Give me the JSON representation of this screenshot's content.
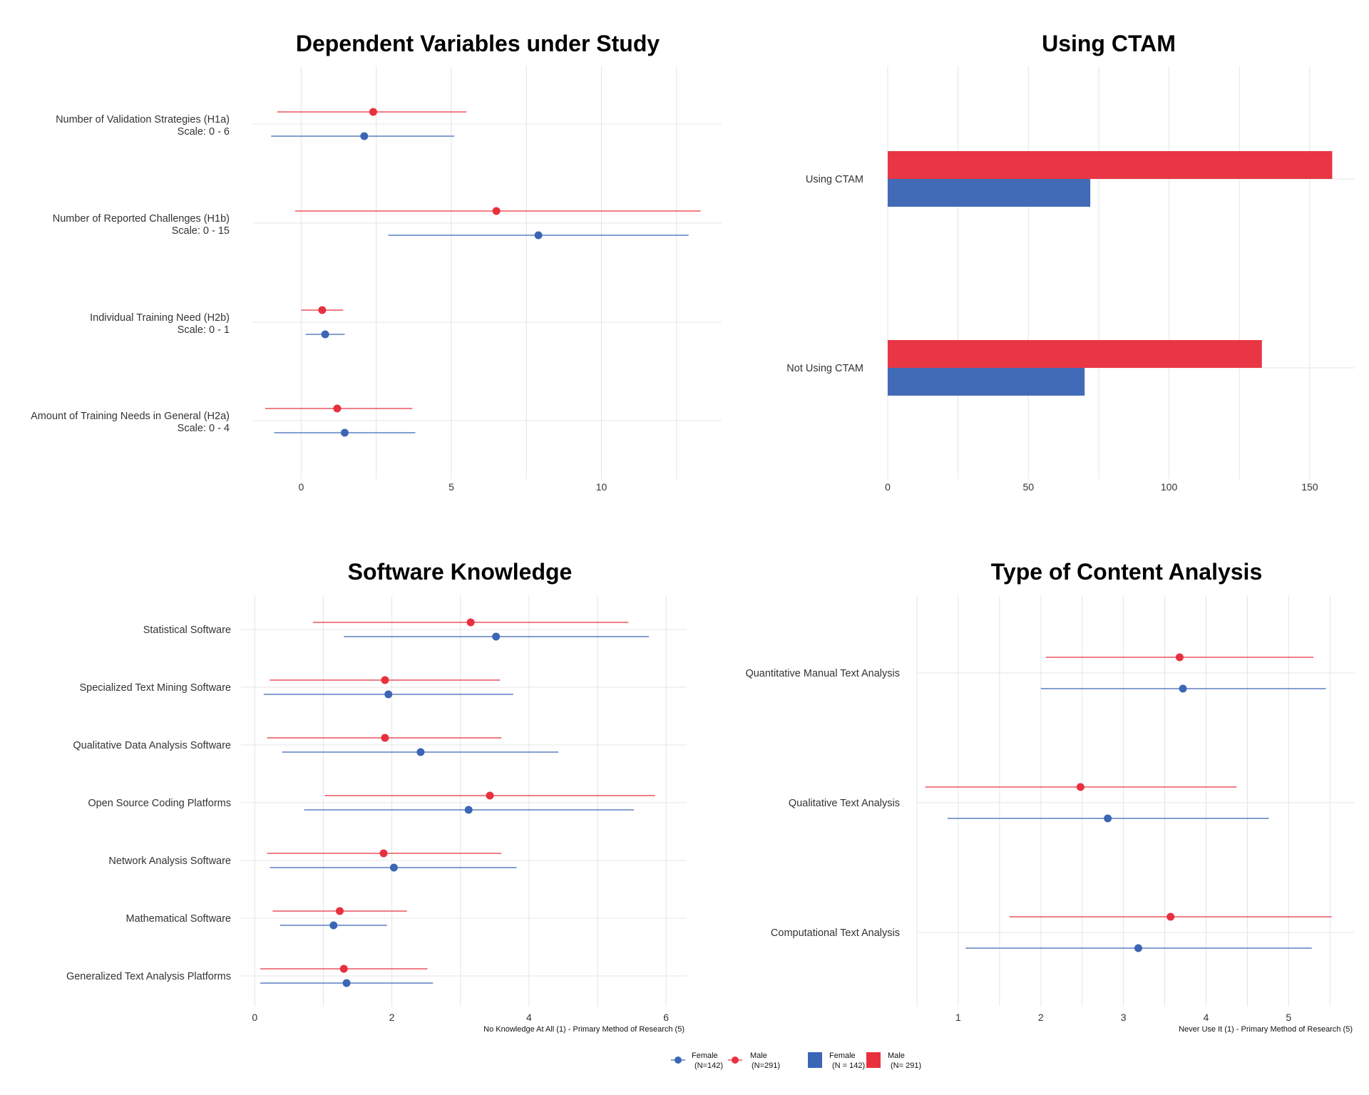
{
  "colors": {
    "female": "#3b66b5",
    "male": "#e8303f"
  },
  "chart_data": [
    {
      "id": "dv",
      "type": "dot-errorbar",
      "title": "Dependent Variables under Study",
      "xlim": [
        -1.6,
        14
      ],
      "xticks": [
        0,
        5,
        10
      ],
      "xlabel": "",
      "categories": [
        {
          "label": "Number of Validation Strategies (H1a)",
          "sublabel": "Scale: 0 - 6",
          "male": {
            "mean": 2.4,
            "low": -0.8,
            "high": 5.5
          },
          "female": {
            "mean": 2.1,
            "low": -1.0,
            "high": 5.1
          }
        },
        {
          "label": "Number of Reported Challenges (H1b)",
          "sublabel": "Scale: 0 - 15",
          "male": {
            "mean": 6.5,
            "low": -0.2,
            "high": 13.3
          },
          "female": {
            "mean": 7.9,
            "low": 2.9,
            "high": 12.9
          }
        },
        {
          "label": "Individual Training Need (H2b)",
          "sublabel": "Scale: 0 - 1",
          "male": {
            "mean": 0.7,
            "low": 0.0,
            "high": 1.4
          },
          "female": {
            "mean": 0.8,
            "low": 0.15,
            "high": 1.45
          }
        },
        {
          "label": "Amount of Training Needs in General (H2a)",
          "sublabel": "Scale: 0 - 4",
          "male": {
            "mean": 1.2,
            "low": -1.2,
            "high": 3.7
          },
          "female": {
            "mean": 1.45,
            "low": -0.9,
            "high": 3.8
          }
        }
      ]
    },
    {
      "id": "ctam",
      "type": "bar",
      "title": "Using CTAM",
      "xlim": [
        0,
        166
      ],
      "xticks": [
        0,
        50,
        100,
        150
      ],
      "categories": [
        "Using CTAM",
        "Not Using CTAM"
      ],
      "series": [
        {
          "name": "Male",
          "values": [
            158,
            133
          ]
        },
        {
          "name": "Female",
          "values": [
            72,
            70
          ]
        }
      ]
    },
    {
      "id": "sw",
      "type": "dot-errorbar",
      "title": "Software Knowledge",
      "xlim": [
        -0.2,
        6.3
      ],
      "xticks": [
        0,
        2,
        4,
        6
      ],
      "xlabel": "No Knowledge At All (1) - Primary Method of Research (5)",
      "categories": [
        {
          "label": "Statistical Software",
          "male": {
            "mean": 3.15,
            "low": 0.85,
            "high": 5.45
          },
          "female": {
            "mean": 3.52,
            "low": 1.3,
            "high": 5.75
          }
        },
        {
          "label": "Specialized Text Mining Software",
          "male": {
            "mean": 1.9,
            "low": 0.22,
            "high": 3.58
          },
          "female": {
            "mean": 1.95,
            "low": 0.13,
            "high": 3.77
          }
        },
        {
          "label": "Qualitative Data Analysis Software",
          "male": {
            "mean": 1.9,
            "low": 0.18,
            "high": 3.6
          },
          "female": {
            "mean": 2.42,
            "low": 0.4,
            "high": 4.43
          }
        },
        {
          "label": "Open Source Coding Platforms",
          "male": {
            "mean": 3.43,
            "low": 1.02,
            "high": 5.84
          },
          "female": {
            "mean": 3.12,
            "low": 0.72,
            "high": 5.53
          }
        },
        {
          "label": "Network Analysis Software",
          "male": {
            "mean": 1.88,
            "low": 0.18,
            "high": 3.6
          },
          "female": {
            "mean": 2.03,
            "low": 0.22,
            "high": 3.82
          }
        },
        {
          "label": "Mathematical Software",
          "male": {
            "mean": 1.24,
            "low": 0.26,
            "high": 2.22
          },
          "female": {
            "mean": 1.15,
            "low": 0.37,
            "high": 1.93
          }
        },
        {
          "label": "Generalized Text Analysis Platforms",
          "male": {
            "mean": 1.3,
            "low": 0.08,
            "high": 2.52
          },
          "female": {
            "mean": 1.34,
            "low": 0.08,
            "high": 2.6
          }
        }
      ]
    },
    {
      "id": "ca",
      "type": "dot-errorbar",
      "title": "Type of Content Analysis",
      "xlim": [
        0.5,
        5.8
      ],
      "xticks": [
        1,
        2,
        3,
        4,
        5
      ],
      "xlabel": "Never Use It (1) - Primary Method of Research (5)",
      "categories": [
        {
          "label": "Quantitative Manual Text Analysis",
          "male": {
            "mean": 3.68,
            "low": 2.06,
            "high": 5.3
          },
          "female": {
            "mean": 3.72,
            "low": 2.0,
            "high": 5.45
          }
        },
        {
          "label": "Qualitative Text Analysis",
          "male": {
            "mean": 2.48,
            "low": 0.6,
            "high": 4.37
          },
          "female": {
            "mean": 2.81,
            "low": 0.87,
            "high": 4.76
          }
        },
        {
          "label": "Computational Text Analysis",
          "male": {
            "mean": 3.57,
            "low": 1.62,
            "high": 5.52
          },
          "female": {
            "mean": 3.18,
            "low": 1.09,
            "high": 5.28
          }
        }
      ]
    }
  ],
  "legend": {
    "dot_female": "Female",
    "dot_female_n": "(N=142)",
    "dot_male": "Male",
    "dot_male_n": "(N=291)",
    "bar_female": "Female",
    "bar_female_n": "(N = 142)",
    "bar_male": "Male",
    "bar_male_n": "(N= 291)"
  }
}
